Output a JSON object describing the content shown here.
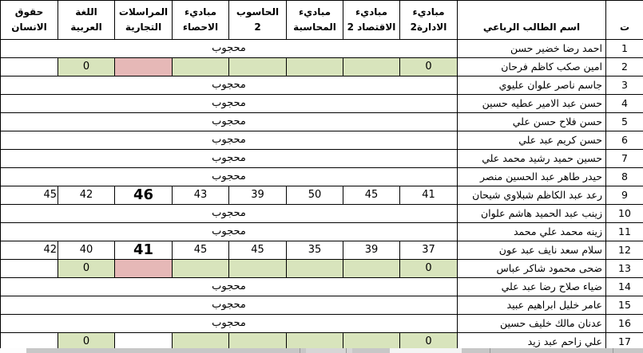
{
  "colors": {
    "green": "#d8e4bc",
    "pink": "#e6b8b7",
    "grid": "#000000",
    "strip": "#c7c7c7"
  },
  "table": {
    "masked_label": "محجوب",
    "headers": [
      {
        "key": "no",
        "label": "ت"
      },
      {
        "key": "name",
        "label": "اسم الطالب الرباعي"
      },
      {
        "key": "management2",
        "label": "مباديء\nالادارة2"
      },
      {
        "key": "economics2",
        "label": "مباديء\nالاقتصاد 2"
      },
      {
        "key": "accounting",
        "label": "مباديء\nالمحاسبة"
      },
      {
        "key": "computer2",
        "label": "الحاسوب\n2"
      },
      {
        "key": "statistics",
        "label": "مباديء\nالاحصاء"
      },
      {
        "key": "commercial-correspondence",
        "label": "المراسلات\nالتجارية"
      },
      {
        "key": "arabic",
        "label": "اللغة\nالعربية"
      },
      {
        "key": "human-rights",
        "label": "حقوق\nالانسان"
      }
    ],
    "rows": [
      {
        "no": "1",
        "name": "احمد رضا خضير حسن",
        "masked": true
      },
      {
        "no": "2",
        "name": "امين صكب كاظم فرحان",
        "masked": false,
        "grades": [
          {
            "v": "0",
            "bg": "g"
          },
          {
            "v": "",
            "bg": "g"
          },
          {
            "v": "",
            "bg": "g"
          },
          {
            "v": "",
            "bg": "g"
          },
          {
            "v": "",
            "bg": "g"
          },
          {
            "v": "",
            "bg": "p"
          },
          {
            "v": "0",
            "bg": "g"
          },
          {
            "v": "",
            "bg": "w"
          }
        ]
      },
      {
        "no": "3",
        "name": "جاسم ناصر علوان عليوي",
        "masked": true
      },
      {
        "no": "4",
        "name": "حسن عبد الامير عطيه حسين",
        "masked": true
      },
      {
        "no": "5",
        "name": "حسن فلاح حسن علي",
        "masked": true
      },
      {
        "no": "6",
        "name": "حسن كريم عبد علي",
        "masked": true
      },
      {
        "no": "7",
        "name": "حسين حميد رشيد محمد علي",
        "masked": true
      },
      {
        "no": "8",
        "name": "حيدر طاهر عبد الحسين منصر",
        "masked": true
      },
      {
        "no": "9",
        "name": "رعد عبد الكاظم شبلاوي شيحان",
        "masked": false,
        "grades": [
          {
            "v": "41",
            "bg": "w"
          },
          {
            "v": "45",
            "bg": "w"
          },
          {
            "v": "50",
            "bg": "w"
          },
          {
            "v": "39",
            "bg": "w"
          },
          {
            "v": "43",
            "bg": "w"
          },
          {
            "v": "46",
            "bg": "w",
            "big": true
          },
          {
            "v": "42",
            "bg": "w"
          },
          {
            "v": "45",
            "bg": "w"
          }
        ]
      },
      {
        "no": "10",
        "name": "زينب عبد الحميد هاشم علوان",
        "masked": true
      },
      {
        "no": "11",
        "name": "زينه محمد علي محمد",
        "masked": true
      },
      {
        "no": "12",
        "name": "سلام سعد نايف عبد عون",
        "masked": false,
        "grades": [
          {
            "v": "37",
            "bg": "w"
          },
          {
            "v": "39",
            "bg": "w"
          },
          {
            "v": "35",
            "bg": "w"
          },
          {
            "v": "45",
            "bg": "w"
          },
          {
            "v": "45",
            "bg": "w"
          },
          {
            "v": "41",
            "bg": "w",
            "big": true
          },
          {
            "v": "40",
            "bg": "w"
          },
          {
            "v": "42",
            "bg": "w"
          }
        ]
      },
      {
        "no": "13",
        "name": "ضحى محمود شاكر عباس",
        "masked": false,
        "grades": [
          {
            "v": "0",
            "bg": "g"
          },
          {
            "v": "",
            "bg": "g"
          },
          {
            "v": "",
            "bg": "g"
          },
          {
            "v": "",
            "bg": "g"
          },
          {
            "v": "",
            "bg": "g"
          },
          {
            "v": "",
            "bg": "p"
          },
          {
            "v": "0",
            "bg": "g"
          },
          {
            "v": "",
            "bg": "w"
          }
        ]
      },
      {
        "no": "14",
        "name": "ضياء صلاح رضا عبد علي",
        "masked": true
      },
      {
        "no": "15",
        "name": "عامر خليل ابراهيم عبيد",
        "masked": true
      },
      {
        "no": "16",
        "name": "عدنان مالك خليف حسين",
        "masked": true
      },
      {
        "no": "17",
        "name": "علي زاحم عبد زيد",
        "masked": false,
        "grades": [
          {
            "v": "0",
            "bg": "g"
          },
          {
            "v": "",
            "bg": "g"
          },
          {
            "v": "",
            "bg": "g"
          },
          {
            "v": "",
            "bg": "g"
          },
          {
            "v": "",
            "bg": "g"
          },
          {
            "v": "",
            "bg": "w"
          },
          {
            "v": "0",
            "bg": "g"
          },
          {
            "v": "",
            "bg": "w"
          }
        ]
      }
    ]
  }
}
